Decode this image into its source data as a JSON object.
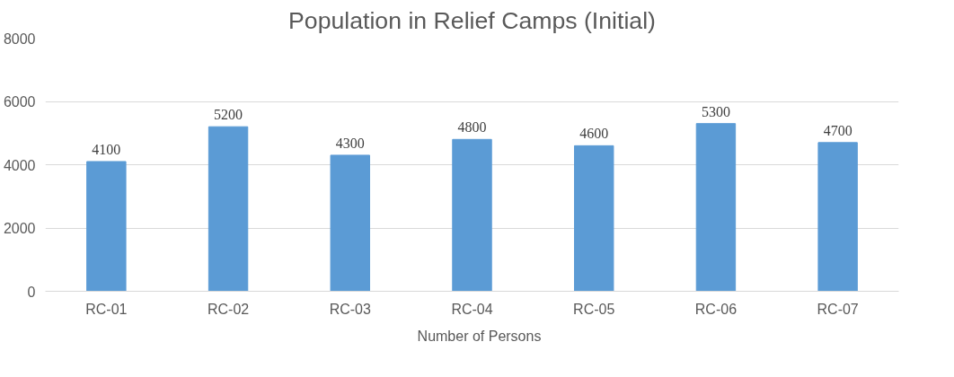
{
  "chart_data": {
    "type": "bar",
    "title": "Population in Relief Camps (Initial)",
    "categories": [
      "RC-01",
      "RC-02",
      "RC-03",
      "RC-04",
      "RC-05",
      "RC-06",
      "RC-07"
    ],
    "series": [
      {
        "name": "Number of Persons",
        "color": "#5b9bd5",
        "values": [
          4100,
          5200,
          4300,
          4800,
          4600,
          5300,
          4700
        ]
      }
    ],
    "ylim": [
      0,
      8000
    ],
    "yticks": [
      0,
      2000,
      4000,
      6000,
      8000
    ],
    "grid": "y",
    "legend": "bottom",
    "data_labels": true
  }
}
